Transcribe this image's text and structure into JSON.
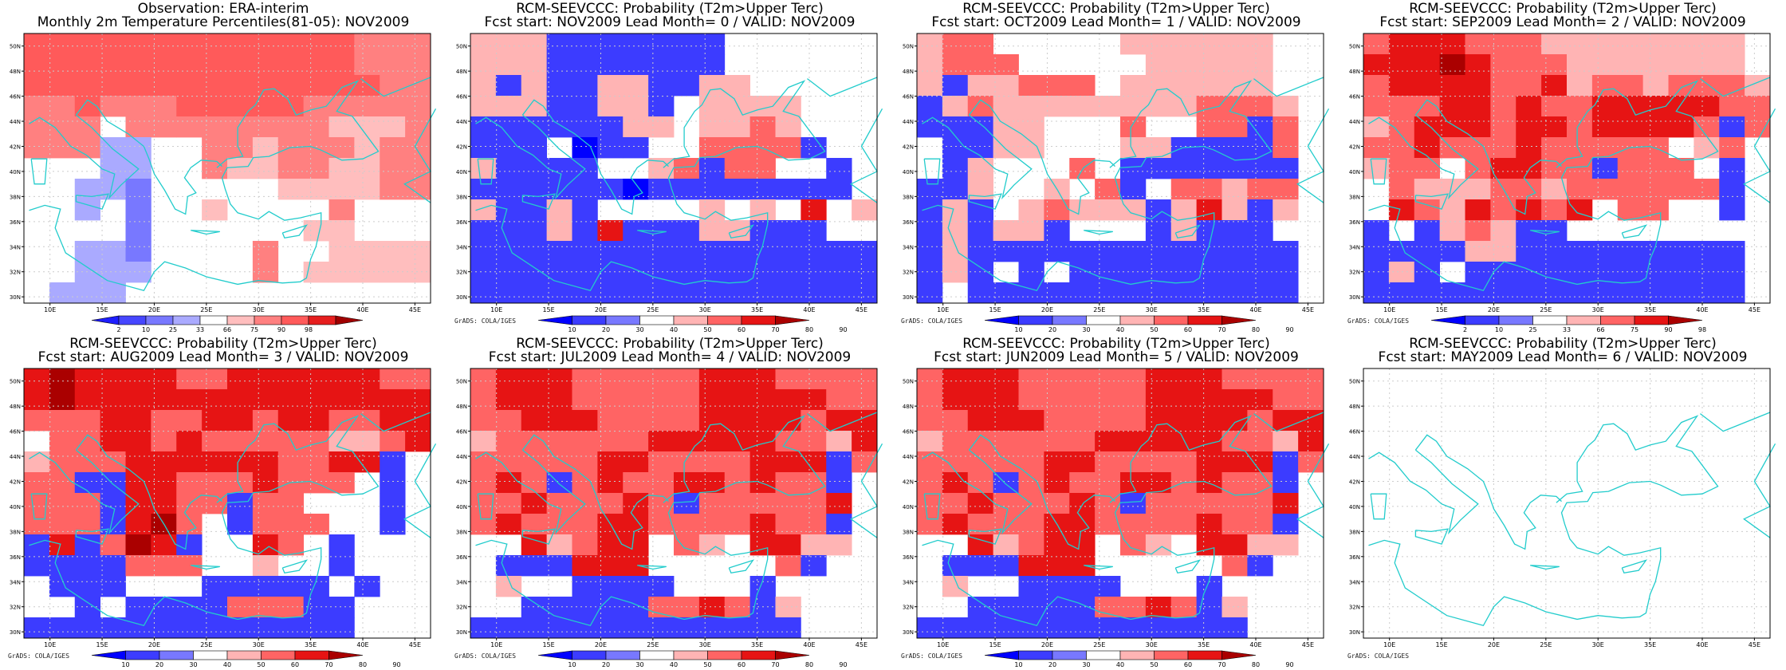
{
  "lon_ticks": [
    "10E",
    "15E",
    "20E",
    "25E",
    "30E",
    "35E",
    "40E",
    "45E"
  ],
  "lat_ticks": [
    "30N",
    "32N",
    "34N",
    "36N",
    "38N",
    "40N",
    "42N",
    "44N",
    "46N",
    "48N",
    "50N"
  ],
  "credit": "GrADS: COLA/IGES",
  "colors": {
    "obs": [
      "#1e1eff",
      "#4646ff",
      "#7878ff",
      "#aaaaff",
      "#ffffff",
      "#ffbebe",
      "#ff8080",
      "#ff5a5a",
      "#e61e1e",
      "#a00000"
    ],
    "prob": [
      "#0000ff",
      "#3c3cff",
      "#7878ff",
      "#ffffff",
      "#ffb4b4",
      "#ff6464",
      "#e61414",
      "#aa0000"
    ],
    "coast": "#22cccc",
    "grid": "#cccccc"
  },
  "panels": [
    {
      "title1": "Observation: ERA-interim",
      "title2": "Monthly 2m Temperature Percentiles(81-05): NOV2009",
      "legend_ticks": [
        "2",
        "10",
        "25",
        "33",
        "66",
        "75",
        "90",
        "98"
      ],
      "show_credit": false,
      "chart_data": {
        "type": "heatmap",
        "rows": [
          "7777777777777666",
          "7777777777777666",
          "7777777777777766",
          "6676667777766666",
          "6664666666665556",
          "6663344665666566",
          "4443344655665566",
          "4433244444555566",
          "4434244544446444",
          "4444244444455444",
          "4433244446445555",
          "4433344446455555",
          "4333444444444444"
        ]
      }
    },
    {
      "title1": "RCM-SEEVCCC: Probability (T2m>Upper Terc)",
      "title2": "Fcst start: NOV2009  Lead Month= 0 / VALID: NOV2009",
      "legend_ticks": [
        "10",
        "20",
        "30",
        "40",
        "50",
        "60",
        "70",
        "80",
        "90"
      ],
      "show_credit": true,
      "chart_data": {
        "type": "heatmap",
        "rows": [
          "4441111111333333",
          "4441111111333333",
          "4141144114433333",
          "4441144134444333",
          "1111114434454333",
          "1113011335555133",
          "4111133451553313",
          "1111110111111113",
          "4114133334343634",
          "1114161114411133",
          "1111111111111111",
          "1111111111111111",
          "1111111111111111"
        ]
      }
    },
    {
      "title1": "RCM-SEEVCCC: Probability (T2m>Upper Terc)",
      "title2": "Fcst start: OCT2009  Lead Month= 1 / VALID: NOV2009",
      "legend_ticks": [
        "10",
        "20",
        "30",
        "40",
        "50",
        "60",
        "70",
        "80",
        "90"
      ],
      "show_credit": true,
      "chart_data": {
        "type": "heatmap",
        "rows": [
          "4553333344444433",
          "4555333334444433",
          "4144555344444433",
          "1454444444455543",
          "1114433353355153",
          "3114433344111153",
          "3143335311111113",
          "1143343513554553",
          "1413454441464143",
          "1414413331411133",
          "1411111111111113",
          "1413131111111113",
          "1311111111111113"
        ]
      }
    },
    {
      "title1": "RCM-SEEVCCC: Probability (T2m>Upper Terc)",
      "title2": "Fcst start: SEP2009  Lead Month= 2 / VALID: NOV2009",
      "legend_ticks": [
        "2",
        "10",
        "25",
        "33",
        "66",
        "75",
        "90",
        "98"
      ],
      "show_credit": true,
      "chart_data": {
        "type": "heatmap",
        "rows": [
          "5666555444444443",
          "6667655544444443",
          "5666655645545554",
          "5556656556666655",
          "4566656656666515",
          "5565556555553453",
          "4553566551555313",
          "3544455455555513",
          "3654656563553313",
          "1314541133333333",
          "1111441111111113",
          "1413111111111113",
          "1111111111111113"
        ]
      }
    },
    {
      "title1": "RCM-SEEVCCC: Probability (T2m>Upper Terc)",
      "title2": "Fcst start: AUG2009  Lead Month= 3 / VALID: NOV2009",
      "legend_ticks": [
        "10",
        "20",
        "30",
        "40",
        "50",
        "60",
        "70",
        "80",
        "90"
      ],
      "show_credit": true,
      "chart_data": {
        "type": "heatmap",
        "rows": [
          "6766665566666655",
          "6766666666666666",
          "5556655665665566",
          "3556656555554456",
          "4555666666556613",
          "5511665556555313",
          "5551665515533313",
          "5551675315553313",
          "1615761336531333",
          "1111555334331333",
          "3111333111113133",
          "3313111155511333",
          "1111111111111333"
        ]
      }
    },
    {
      "title1": "RCM-SEEVCCC: Probability (T2m>Upper Terc)",
      "title2": "Fcst start: JUL2009  Lead Month= 4 / VALID: NOV2009",
      "legend_ticks": [
        "10",
        "20",
        "30",
        "40",
        "50",
        "60",
        "70",
        "80",
        "90"
      ],
      "show_credit": true,
      "chart_data": {
        "type": "heatmap",
        "rows": [
          "5666555556665555",
          "5666555556666655",
          "5566655556666566",
          "4555555666665546",
          "5555566555566615",
          "5651565566565513",
          "5565556515555563",
          "5655566555565513",
          "3364566354366443",
          "3111666333335133",
          "3433111133313333",
          "3311111556514333",
          "1111111111111333"
        ]
      }
    },
    {
      "title1": "RCM-SEEVCCC: Probability (T2m>Upper Terc)",
      "title2": "Fcst start: JUN2009  Lead Month= 5 / VALID: NOV2009",
      "legend_ticks": [
        "10",
        "20",
        "30",
        "40",
        "50",
        "60",
        "70",
        "80",
        "90"
      ],
      "show_credit": true,
      "chart_data": {
        "type": "heatmap",
        "rows": [
          "5666555556665555",
          "5666555556666655",
          "5566655556666566",
          "4555555666665546",
          "5555566555566615",
          "5651565566565513",
          "5565556515555563",
          "5655566555565513",
          "3364566354366443",
          "3111666333335133",
          "3433111133313333",
          "3311111556514333",
          "1111111111111333"
        ]
      }
    },
    {
      "title1": "RCM-SEEVCCC: Probability (T2m>Upper Terc)",
      "title2": "Fcst start: MAY2009  Lead Month= 6 / VALID: NOV2009",
      "legend_ticks": [],
      "show_credit": true,
      "chart_data": {
        "type": "heatmap",
        "rows": []
      }
    }
  ]
}
